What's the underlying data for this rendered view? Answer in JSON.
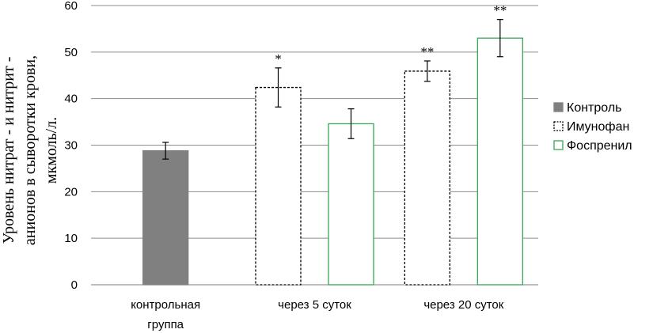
{
  "chart_data": {
    "type": "bar",
    "categories": [
      [
        "контрольная",
        "группа"
      ],
      [
        "через 5 суток"
      ],
      [
        "через 20 суток"
      ]
    ],
    "ylabel": [
      "Уровень  нитрат - и нитрит -",
      "анионов в сыворотки крови,",
      "мкмоль/л."
    ],
    "ylim": [
      0,
      60
    ],
    "yticks": [
      0,
      10,
      20,
      30,
      40,
      50,
      60
    ],
    "grid": true,
    "legend_position": "right",
    "series": [
      {
        "name": "Контроль",
        "style": "solid",
        "fill": "#808080",
        "stroke": "#808080",
        "values": [
          28.8,
          null,
          null
        ],
        "errors": [
          1.8,
          null,
          null
        ],
        "markers": [
          "",
          "",
          ""
        ]
      },
      {
        "name": "Имунофан",
        "style": "dashed",
        "fill": "#ffffff",
        "stroke": "#000000",
        "values": [
          null,
          42.4,
          45.9
        ],
        "errors": [
          null,
          4.2,
          2.2
        ],
        "markers": [
          "",
          "*",
          "**"
        ]
      },
      {
        "name": "Фоспренил",
        "style": "solid-outline",
        "fill": "#ffffff",
        "stroke": "#3aa65a",
        "values": [
          null,
          34.6,
          53.0
        ],
        "errors": [
          null,
          3.2,
          4.0
        ],
        "markers": [
          "",
          "",
          "**"
        ]
      }
    ]
  }
}
